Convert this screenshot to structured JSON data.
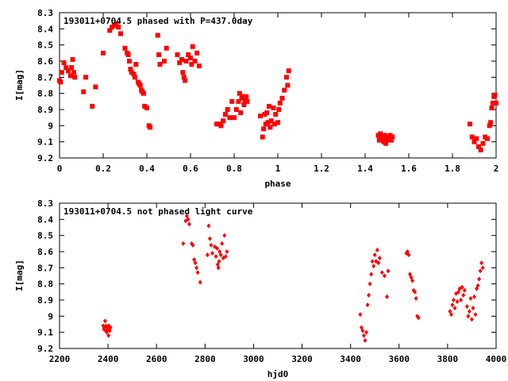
{
  "chart_data": [
    {
      "type": "scatter",
      "title": "193011+0704.5 phased with P=437.0day",
      "xlabel": "phase",
      "ylabel": "I[mag]",
      "xlim": [
        0,
        2
      ],
      "ylim": [
        9.2,
        8.3
      ],
      "y_inverted": true,
      "xticks": [
        0,
        0.2,
        0.4,
        0.6,
        0.8,
        1,
        1.2,
        1.4,
        1.6,
        1.8,
        2
      ],
      "xtick_labels": [
        "0",
        "0.2",
        "0.4",
        "0.6",
        "0.8",
        "1",
        "1.2",
        "1.4",
        "1.6",
        "1.8",
        "2"
      ],
      "yticks": [
        8.3,
        8.4,
        8.5,
        8.6,
        8.7,
        8.8,
        8.9,
        9,
        9.1,
        9.2
      ],
      "ytick_labels": [
        "8.3",
        "8.4",
        "8.5",
        "8.6",
        "8.7",
        "8.8",
        "8.9",
        "9",
        "9.1",
        "9.2"
      ],
      "marker": "square",
      "color": "#ff0000",
      "series": [
        {
          "points": [
            [
              0.0,
              8.72
            ],
            [
              0.005,
              8.73
            ],
            [
              0.01,
              8.67
            ],
            [
              0.02,
              8.61
            ],
            [
              0.03,
              8.64
            ],
            [
              0.04,
              8.66
            ],
            [
              0.05,
              8.69
            ],
            [
              0.055,
              8.64
            ],
            [
              0.06,
              8.59
            ],
            [
              0.065,
              8.67
            ],
            [
              0.07,
              8.7
            ],
            [
              0.11,
              8.79
            ],
            [
              0.12,
              8.7
            ],
            [
              0.15,
              8.88
            ],
            [
              0.165,
              8.76
            ],
            [
              0.2,
              8.55
            ],
            [
              0.23,
              8.41
            ],
            [
              0.24,
              8.39
            ],
            [
              0.25,
              8.38
            ],
            [
              0.26,
              8.37
            ],
            [
              0.27,
              8.39
            ],
            [
              0.28,
              8.43
            ],
            [
              0.3,
              8.52
            ],
            [
              0.31,
              8.55
            ],
            [
              0.315,
              8.56
            ],
            [
              0.32,
              8.6
            ],
            [
              0.325,
              8.65
            ],
            [
              0.33,
              8.67
            ],
            [
              0.34,
              8.68
            ],
            [
              0.345,
              8.7
            ],
            [
              0.35,
              8.62
            ],
            [
              0.36,
              8.73
            ],
            [
              0.365,
              8.74
            ],
            [
              0.37,
              8.75
            ],
            [
              0.375,
              8.78
            ],
            [
              0.38,
              8.79
            ],
            [
              0.385,
              8.8
            ],
            [
              0.39,
              8.88
            ],
            [
              0.4,
              8.89
            ],
            [
              0.41,
              9.0
            ],
            [
              0.415,
              9.01
            ],
            [
              0.45,
              8.44
            ],
            [
              0.455,
              8.56
            ],
            [
              0.46,
              8.62
            ],
            [
              0.48,
              8.6
            ],
            [
              0.49,
              8.52
            ],
            [
              0.54,
              8.56
            ],
            [
              0.55,
              8.61
            ],
            [
              0.56,
              8.59
            ],
            [
              0.565,
              8.67
            ],
            [
              0.57,
              8.7
            ],
            [
              0.575,
              8.72
            ],
            [
              0.58,
              8.6
            ],
            [
              0.59,
              8.56
            ],
            [
              0.6,
              8.58
            ],
            [
              0.605,
              8.62
            ],
            [
              0.61,
              8.51
            ],
            [
              0.62,
              8.6
            ],
            [
              0.63,
              8.55
            ],
            [
              0.64,
              8.63
            ],
            [
              0.72,
              8.99
            ],
            [
              0.73,
              8.99
            ],
            [
              0.74,
              9.0
            ],
            [
              0.75,
              8.97
            ],
            [
              0.76,
              8.93
            ],
            [
              0.77,
              8.9
            ],
            [
              0.78,
              8.95
            ],
            [
              0.79,
              8.85
            ],
            [
              0.8,
              8.95
            ],
            [
              0.81,
              8.9
            ],
            [
              0.82,
              8.85
            ],
            [
              0.825,
              8.8
            ],
            [
              0.83,
              8.92
            ],
            [
              0.835,
              8.83
            ],
            [
              0.84,
              8.82
            ],
            [
              0.845,
              8.87
            ],
            [
              0.85,
              8.84
            ],
            [
              0.855,
              8.82
            ],
            [
              0.86,
              8.85
            ],
            [
              0.92,
              8.94
            ],
            [
              0.93,
              9.07
            ],
            [
              0.935,
              9.02
            ],
            [
              0.94,
              8.93
            ],
            [
              0.945,
              8.99
            ],
            [
              0.95,
              8.92
            ],
            [
              0.955,
              8.98
            ],
            [
              0.96,
              8.88
            ],
            [
              0.965,
              9.01
            ],
            [
              0.97,
              8.97
            ],
            [
              0.98,
              8.89
            ],
            [
              0.985,
              8.99
            ],
            [
              0.99,
              8.93
            ],
            [
              1.0,
              8.98
            ],
            [
              1.005,
              8.9
            ],
            [
              1.01,
              8.86
            ],
            [
              1.02,
              8.83
            ],
            [
              1.03,
              8.78
            ],
            [
              1.04,
              8.7
            ],
            [
              1.045,
              8.75
            ],
            [
              1.05,
              8.66
            ],
            [
              1.46,
              9.06
            ],
            [
              1.465,
              9.09
            ],
            [
              1.47,
              9.05
            ],
            [
              1.475,
              9.07
            ],
            [
              1.48,
              9.08
            ],
            [
              1.485,
              9.1
            ],
            [
              1.49,
              9.06
            ],
            [
              1.495,
              9.11
            ],
            [
              1.5,
              9.07
            ],
            [
              1.505,
              9.09
            ],
            [
              1.51,
              9.08
            ],
            [
              1.515,
              9.06
            ],
            [
              1.52,
              9.09
            ],
            [
              1.525,
              9.07
            ],
            [
              1.88,
              8.99
            ],
            [
              1.89,
              9.07
            ],
            [
              1.9,
              9.1
            ],
            [
              1.91,
              9.08
            ],
            [
              1.92,
              9.13
            ],
            [
              1.93,
              9.15
            ],
            [
              1.94,
              9.11
            ],
            [
              1.95,
              9.07
            ],
            [
              1.96,
              9.08
            ],
            [
              1.97,
              9.0
            ],
            [
              1.975,
              8.98
            ],
            [
              1.98,
              8.89
            ],
            [
              1.985,
              8.86
            ],
            [
              1.99,
              8.82
            ],
            [
              1.995,
              8.81
            ],
            [
              2.0,
              8.86
            ]
          ]
        }
      ]
    },
    {
      "type": "scatter",
      "title": "193011+0704.5 not phased light curve",
      "xlabel": "hjd0",
      "ylabel": "I[mag]",
      "xlim": [
        2200,
        4000
      ],
      "ylim": [
        9.2,
        8.3
      ],
      "y_inverted": true,
      "xticks": [
        2200,
        2400,
        2600,
        2800,
        3000,
        3200,
        3400,
        3600,
        3800,
        4000
      ],
      "xtick_labels": [
        "2200",
        "2400",
        "2600",
        "2800",
        "3000",
        "3200",
        "3400",
        "3600",
        "3800",
        "4000"
      ],
      "yticks": [
        8.3,
        8.4,
        8.5,
        8.6,
        8.7,
        8.8,
        8.9,
        9,
        9.1,
        9.2
      ],
      "ytick_labels": [
        "8.3",
        "8.4",
        "8.5",
        "8.6",
        "8.7",
        "8.8",
        "8.9",
        "9",
        "9.1",
        "9.2"
      ],
      "marker": "diamond",
      "color": "#ff0000",
      "series": [
        {
          "points": [
            [
              2380,
              9.06
            ],
            [
              2383,
              9.08
            ],
            [
              2386,
              9.07
            ],
            [
              2388,
              9.03
            ],
            [
              2390,
              9.09
            ],
            [
              2392,
              9.06
            ],
            [
              2395,
              9.1
            ],
            [
              2397,
              9.07
            ],
            [
              2400,
              9.08
            ],
            [
              2402,
              9.12
            ],
            [
              2404,
              9.06
            ],
            [
              2407,
              9.09
            ],
            [
              2410,
              9.07
            ],
            [
              2710,
              8.55
            ],
            [
              2720,
              8.41
            ],
            [
              2725,
              8.38
            ],
            [
              2730,
              8.4
            ],
            [
              2735,
              8.43
            ],
            [
              2745,
              8.55
            ],
            [
              2750,
              8.56
            ],
            [
              2755,
              8.65
            ],
            [
              2760,
              8.67
            ],
            [
              2765,
              8.7
            ],
            [
              2770,
              8.73
            ],
            [
              2780,
              8.79
            ],
            [
              2810,
              8.62
            ],
            [
              2815,
              8.44
            ],
            [
              2820,
              8.52
            ],
            [
              2825,
              8.56
            ],
            [
              2830,
              8.61
            ],
            [
              2840,
              8.57
            ],
            [
              2845,
              8.63
            ],
            [
              2850,
              8.58
            ],
            [
              2852,
              8.68
            ],
            [
              2855,
              8.7
            ],
            [
              2858,
              8.66
            ],
            [
              2860,
              8.6
            ],
            [
              2865,
              8.62
            ],
            [
              2870,
              8.55
            ],
            [
              2875,
              8.64
            ],
            [
              2880,
              8.5
            ],
            [
              2885,
              8.63
            ],
            [
              2890,
              8.6
            ],
            [
              3440,
              8.99
            ],
            [
              3445,
              9.07
            ],
            [
              3450,
              9.09
            ],
            [
              3455,
              9.12
            ],
            [
              3460,
              9.15
            ],
            [
              3465,
              9.1
            ],
            [
              3470,
              8.93
            ],
            [
              3475,
              8.87
            ],
            [
              3480,
              8.8
            ],
            [
              3485,
              8.74
            ],
            [
              3490,
              8.66
            ],
            [
              3495,
              8.69
            ],
            [
              3500,
              8.62
            ],
            [
              3505,
              8.66
            ],
            [
              3510,
              8.59
            ],
            [
              3515,
              8.67
            ],
            [
              3520,
              8.64
            ],
            [
              3530,
              8.73
            ],
            [
              3540,
              8.75
            ],
            [
              3550,
              8.88
            ],
            [
              3555,
              8.72
            ],
            [
              3630,
              8.61
            ],
            [
              3635,
              8.6
            ],
            [
              3640,
              8.62
            ],
            [
              3645,
              8.74
            ],
            [
              3650,
              8.76
            ],
            [
              3655,
              8.78
            ],
            [
              3660,
              8.84
            ],
            [
              3665,
              8.85
            ],
            [
              3670,
              8.89
            ],
            [
              3675,
              9.0
            ],
            [
              3680,
              9.01
            ],
            [
              3810,
              8.97
            ],
            [
              3815,
              8.99
            ],
            [
              3820,
              8.93
            ],
            [
              3825,
              8.9
            ],
            [
              3830,
              8.95
            ],
            [
              3835,
              8.86
            ],
            [
              3840,
              8.91
            ],
            [
              3845,
              8.85
            ],
            [
              3850,
              8.83
            ],
            [
              3855,
              8.9
            ],
            [
              3860,
              8.82
            ],
            [
              3865,
              8.87
            ],
            [
              3870,
              8.84
            ],
            [
              3880,
              8.94
            ],
            [
              3885,
              9.0
            ],
            [
              3890,
              8.97
            ],
            [
              3895,
              8.89
            ],
            [
              3900,
              9.02
            ],
            [
              3905,
              8.95
            ],
            [
              3910,
              8.88
            ],
            [
              3915,
              8.99
            ],
            [
              3920,
              8.83
            ],
            [
              3925,
              8.81
            ],
            [
              3930,
              8.77
            ],
            [
              3935,
              8.72
            ],
            [
              3940,
              8.67
            ],
            [
              3945,
              8.7
            ]
          ]
        }
      ]
    }
  ]
}
